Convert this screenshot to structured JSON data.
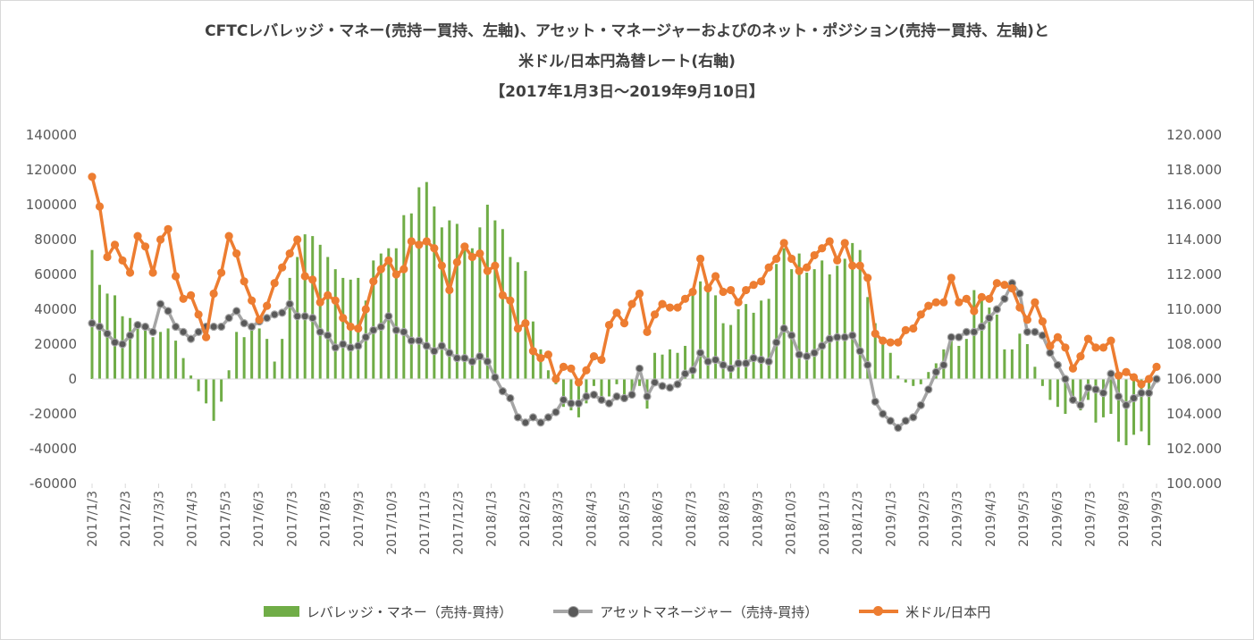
{
  "chart_data": {
    "type": "bar+line",
    "title_lines": [
      "CFTCレバレッジ・マネー(売持ー買持、左軸)、アセット・マネージャーおよびのネット・ポジション(売持ー買持、左軸)と",
      "米ドル/日本円為替レート(右軸)",
      "【2017年1月3日～2019年9月10日】"
    ],
    "left_axis": {
      "min": -60000,
      "max": 140000,
      "step": 20000,
      "ticks": [
        "140000",
        "120000",
        "100000",
        "80000",
        "60000",
        "40000",
        "20000",
        "0",
        "-20000",
        "-40000",
        "-60000"
      ]
    },
    "right_axis": {
      "min": 100,
      "max": 120,
      "step": 2,
      "ticks": [
        "120.000",
        "118.000",
        "116.000",
        "114.000",
        "112.000",
        "110.000",
        "108.000",
        "106.000",
        "104.000",
        "102.000",
        "100.000"
      ]
    },
    "x_tick_labels": [
      "2017/1/3",
      "2017/2/3",
      "2017/3/3",
      "2017/4/3",
      "2017/5/3",
      "2017/6/3",
      "2017/7/3",
      "2017/8/3",
      "2017/9/3",
      "2017/10/3",
      "2017/11/3",
      "2017/12/3",
      "2018/1/3",
      "2018/2/3",
      "2018/3/3",
      "2018/4/3",
      "2018/5/3",
      "2018/6/3",
      "2018/7/3",
      "2018/8/3",
      "2018/9/3",
      "2018/10/3",
      "2018/11/3",
      "2018/12/3",
      "2019/1/3",
      "2019/2/3",
      "2019/3/3",
      "2019/4/3",
      "2019/5/3",
      "2019/6/3",
      "2019/7/3",
      "2019/8/3",
      "2019/9/3"
    ],
    "series": [
      {
        "name": "レバレッジ・マネー（売持-買持）",
        "type": "bar",
        "axis": "left",
        "color": "#70ad47",
        "values": [
          74000,
          54000,
          49000,
          48000,
          36000,
          35000,
          33000,
          28000,
          24000,
          27000,
          29000,
          22000,
          12000,
          2000,
          -7000,
          -14000,
          -24000,
          -13000,
          5000,
          27000,
          24000,
          29000,
          29000,
          23000,
          10000,
          23000,
          58000,
          70000,
          83000,
          82000,
          77000,
          70000,
          63000,
          58000,
          57000,
          58000,
          45000,
          68000,
          72000,
          75000,
          75000,
          94000,
          95000,
          110000,
          113000,
          99000,
          87000,
          91000,
          89000,
          78000,
          75000,
          87000,
          100000,
          91000,
          86000,
          70000,
          67000,
          62000,
          33000,
          17000,
          5000,
          -3000,
          -16000,
          -18000,
          -22000,
          -14000,
          -4000,
          -14000,
          -10000,
          -3000,
          -10000,
          -11000,
          -4000,
          -17000,
          15000,
          14000,
          17000,
          15000,
          19000,
          52000,
          56000,
          54000,
          48000,
          32000,
          31000,
          40000,
          43000,
          38000,
          45000,
          46000,
          66000,
          75000,
          63000,
          72000,
          61000,
          63000,
          68000,
          60000,
          65000,
          69000,
          78000,
          74000,
          47000,
          32000,
          21000,
          15000,
          2000,
          -2000,
          -4000,
          -3000,
          4000,
          9000,
          17000,
          22000,
          19000,
          23000,
          51000,
          48000,
          41000,
          37000,
          17000,
          17000,
          26000,
          20000,
          7000,
          -4000,
          -12000,
          -16000,
          -20000,
          -14000,
          -18000,
          -12000,
          -25000,
          -22000,
          -20000,
          -36000,
          -38000,
          -32000,
          -30000,
          -38000
        ]
      },
      {
        "name": "アセットマネージャー（売持-買持）",
        "type": "line",
        "axis": "left",
        "color": "#a5a5a5",
        "marker_color": "#595959",
        "values": [
          32000,
          30000,
          26000,
          21000,
          20000,
          25000,
          31000,
          30000,
          27000,
          43000,
          39000,
          30000,
          27000,
          23000,
          27000,
          30000,
          30000,
          30000,
          35000,
          39000,
          32000,
          30000,
          33000,
          35000,
          37000,
          38000,
          43000,
          36000,
          36000,
          35000,
          27000,
          25000,
          18000,
          20000,
          18000,
          19000,
          24000,
          28000,
          30000,
          36000,
          28000,
          27000,
          22000,
          22000,
          19000,
          16000,
          19000,
          15000,
          12000,
          12000,
          10000,
          13000,
          10000,
          1000,
          -7000,
          -11000,
          -22000,
          -25000,
          -22000,
          -25000,
          -22000,
          -19000,
          -12000,
          -14000,
          -14000,
          -10000,
          -9000,
          -12000,
          -14000,
          -10000,
          -11000,
          -9000,
          6000,
          -10000,
          -2000,
          -4000,
          -5000,
          -3000,
          3000,
          5000,
          15000,
          10000,
          11000,
          8000,
          6000,
          9000,
          9000,
          12000,
          11000,
          10000,
          21000,
          29000,
          25000,
          14000,
          13000,
          15000,
          19000,
          23000,
          24000,
          24000,
          25000,
          16000,
          8000,
          -13000,
          -20000,
          -24000,
          -28000,
          -24000,
          -22000,
          -15000,
          -6000,
          4000,
          8000,
          24000,
          24000,
          27000,
          27000,
          30000,
          35000,
          40000,
          46000,
          55000,
          49000,
          27000,
          27000,
          25000,
          15000,
          8000,
          0,
          -12000,
          -15000,
          -5000,
          -6000,
          -8000,
          3000,
          -10000,
          -15000,
          -11000,
          -8000,
          -8000,
          0
        ]
      },
      {
        "name": "米ドル/日本円",
        "type": "line",
        "axis": "right",
        "color": "#ed7d31",
        "values": [
          117.6,
          115.9,
          113.0,
          113.7,
          112.8,
          112.1,
          114.2,
          113.6,
          112.1,
          114.0,
          114.6,
          111.9,
          110.6,
          110.8,
          109.7,
          108.4,
          110.9,
          112.1,
          114.2,
          113.2,
          111.6,
          110.5,
          109.4,
          110.2,
          111.5,
          112.4,
          113.2,
          114.0,
          111.9,
          111.7,
          110.4,
          110.8,
          110.5,
          109.5,
          109.0,
          108.9,
          110.0,
          111.6,
          112.3,
          112.8,
          112.0,
          112.3,
          113.9,
          113.7,
          113.9,
          113.5,
          112.5,
          111.1,
          112.7,
          113.6,
          113.0,
          113.2,
          112.2,
          112.5,
          110.8,
          110.5,
          108.9,
          109.2,
          107.6,
          107.2,
          107.4,
          106.0,
          106.7,
          106.6,
          105.8,
          106.5,
          107.3,
          107.1,
          109.1,
          109.8,
          109.2,
          110.3,
          110.9,
          108.7,
          109.7,
          110.3,
          110.1,
          110.1,
          110.6,
          111.0,
          112.9,
          111.2,
          111.9,
          111.0,
          111.1,
          110.4,
          111.1,
          111.4,
          111.6,
          112.4,
          112.9,
          113.8,
          112.9,
          112.2,
          112.4,
          113.1,
          113.5,
          113.9,
          112.8,
          113.8,
          112.5,
          112.5,
          111.8,
          108.6,
          108.2,
          108.1,
          108.1,
          108.8,
          108.9,
          109.7,
          110.2,
          110.4,
          110.4,
          111.8,
          110.4,
          110.6,
          109.9,
          110.7,
          110.6,
          111.5,
          111.4,
          111.2,
          110.1,
          109.4,
          110.4,
          109.3,
          107.9,
          108.4,
          107.8,
          106.6,
          107.3,
          108.3,
          107.8,
          107.8,
          108.2,
          106.2,
          106.4,
          106.1,
          105.7,
          106.0,
          106.7
        ]
      }
    ]
  }
}
